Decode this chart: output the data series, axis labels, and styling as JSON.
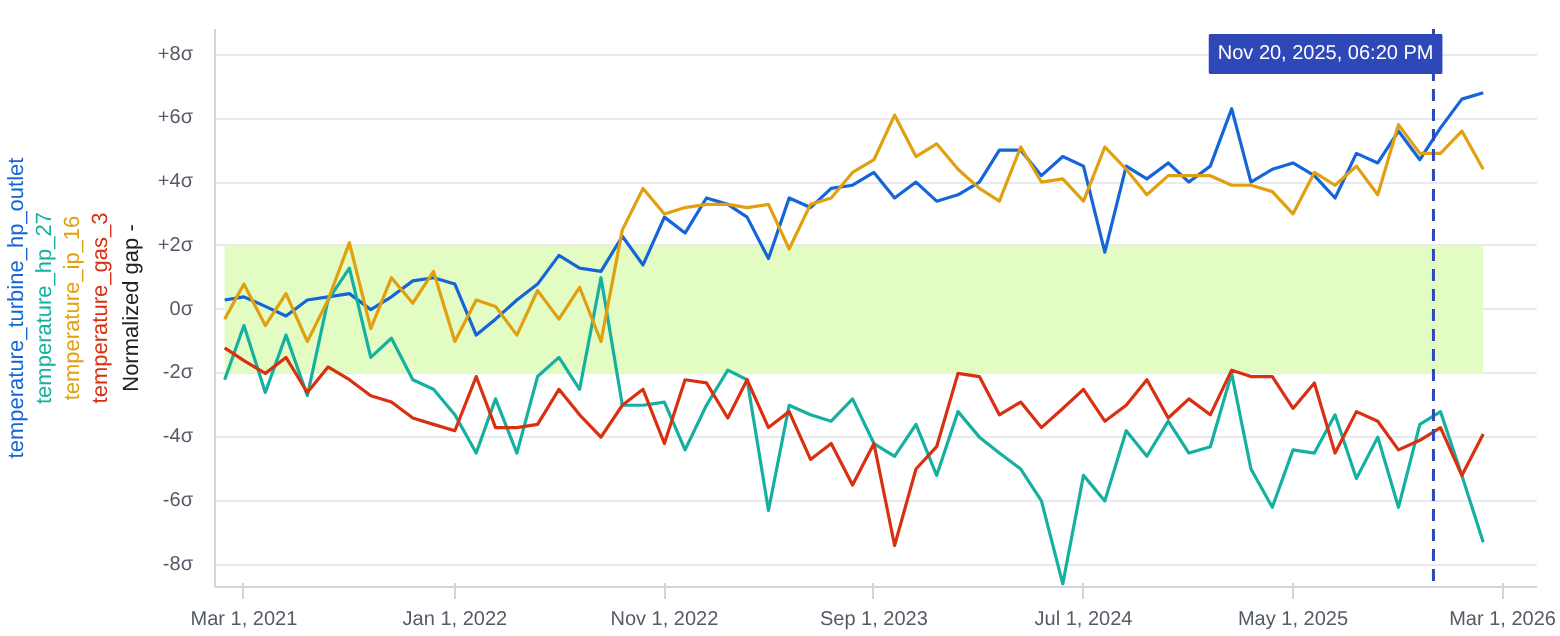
{
  "chart_data": {
    "type": "line",
    "ylabel": "Normalized gap -",
    "x": [
      "2021-02",
      "2021-03",
      "2021-04",
      "2021-05",
      "2021-06",
      "2021-07",
      "2021-08",
      "2021-09",
      "2021-10",
      "2021-11",
      "2021-12",
      "2022-01",
      "2022-02",
      "2022-03",
      "2022-04",
      "2022-05",
      "2022-06",
      "2022-07",
      "2022-08",
      "2022-09",
      "2022-10",
      "2022-11",
      "2022-12",
      "2023-01",
      "2023-02",
      "2023-03",
      "2023-04",
      "2023-05",
      "2023-06",
      "2023-07",
      "2023-08",
      "2023-09",
      "2023-10",
      "2023-11",
      "2023-12",
      "2024-01",
      "2024-02",
      "2024-03",
      "2024-04",
      "2024-05",
      "2024-06",
      "2024-07",
      "2024-08",
      "2024-09",
      "2024-10",
      "2024-11",
      "2024-12",
      "2025-01",
      "2025-02",
      "2025-03",
      "2025-04",
      "2025-05",
      "2025-06",
      "2025-07",
      "2025-08",
      "2025-09",
      "2025-10",
      "2025-11",
      "2025-12",
      "2026-01",
      "2026-02"
    ],
    "series": [
      {
        "name": "temperature_turbine_hp_outlet",
        "color": "#1565d8",
        "values": [
          0.3,
          0.4,
          0.1,
          -0.2,
          0.3,
          0.4,
          0.5,
          0,
          0.4,
          0.9,
          1,
          0.8,
          -0.8,
          -0.3,
          0.3,
          0.8,
          1.7,
          1.3,
          1.2,
          2.3,
          1.4,
          2.9,
          2.4,
          3.5,
          3.3,
          2.9,
          1.6,
          3.5,
          3.2,
          3.8,
          3.9,
          4.3,
          3.5,
          4,
          3.4,
          3.6,
          4,
          5,
          5,
          4.2,
          4.8,
          4.5,
          1.8,
          4.5,
          4.1,
          4.6,
          4,
          4.5,
          6.3,
          4,
          4.4,
          4.6,
          4.2,
          3.5,
          4.9,
          4.6,
          5.6,
          4.7,
          5.7,
          6.6,
          6.8
        ]
      },
      {
        "name": "temperature_hp_27",
        "color": "#16b0a0",
        "values": [
          -2.2,
          -0.5,
          -2.6,
          -0.8,
          -2.7,
          0.3,
          1.3,
          -1.5,
          -0.9,
          -2.2,
          -2.5,
          -3.3,
          -4.5,
          -2.8,
          -4.5,
          -2.1,
          -1.5,
          -2.5,
          1,
          -3,
          -3,
          -2.9,
          -4.4,
          -3,
          -1.9,
          -2.2,
          -6.3,
          -3,
          -3.3,
          -3.5,
          -2.8,
          -4.2,
          -4.6,
          -3.6,
          -5.2,
          -3.2,
          -4,
          -4.5,
          -5,
          -6,
          -8.6,
          -5.2,
          -6,
          -3.8,
          -4.6,
          -3.5,
          -4.5,
          -4.3,
          -2,
          -5,
          -6.2,
          -4.4,
          -4.5,
          -3.3,
          -5.3,
          -4,
          -6.2,
          -3.6,
          -3.2,
          -5.2,
          -7.3
        ]
      },
      {
        "name": "temperature_ip_16",
        "color": "#e0a010",
        "values": [
          -0.3,
          0.8,
          -0.5,
          0.5,
          -1,
          0.3,
          2.1,
          -0.6,
          1,
          0.2,
          1.2,
          -1,
          0.3,
          0.1,
          -0.8,
          0.6,
          -0.3,
          0.7,
          -1,
          2.5,
          3.8,
          3,
          3.2,
          3.3,
          3.3,
          3.2,
          3.3,
          1.9,
          3.3,
          3.5,
          4.3,
          4.7,
          6.1,
          4.8,
          5.2,
          4.4,
          3.8,
          3.4,
          5.1,
          4,
          4.1,
          3.4,
          5.1,
          4.4,
          3.6,
          4.2,
          4.2,
          4.2,
          3.9,
          3.9,
          3.7,
          3,
          4.3,
          3.9,
          4.5,
          3.6,
          5.8,
          4.9,
          4.9,
          5.6,
          4.4
        ]
      },
      {
        "name": "temperature_gas_3",
        "color": "#d83010",
        "values": [
          -1.2,
          -1.6,
          -2,
          -1.5,
          -2.6,
          -1.8,
          -2.2,
          -2.7,
          -2.9,
          -3.4,
          -3.6,
          -3.8,
          -2.1,
          -3.7,
          -3.7,
          -3.6,
          -2.5,
          -3.3,
          -4,
          -3,
          -2.5,
          -4.2,
          -2.2,
          -2.3,
          -3.4,
          -2.2,
          -3.7,
          -3.2,
          -4.7,
          -4.2,
          -5.5,
          -4.2,
          -7.4,
          -5,
          -4.3,
          -2,
          -2.1,
          -3.3,
          -2.9,
          -3.7,
          -3.1,
          -2.5,
          -3.5,
          -3,
          -2.2,
          -3.4,
          -2.8,
          -3.3,
          -1.9,
          -2.1,
          -2.1,
          -3.1,
          -2.3,
          -4.5,
          -3.2,
          -3.5,
          -4.4,
          -4.1,
          -3.7,
          -5.2,
          -3.9
        ]
      }
    ],
    "xlim": [
      "2021-01-18",
      "2026-04-20"
    ],
    "xticks": [
      {
        "value": "2021-03-01",
        "label": "Mar 1, 2021"
      },
      {
        "value": "2022-01-01",
        "label": "Jan 1, 2022"
      },
      {
        "value": "2022-11-01",
        "label": "Nov 1, 2022"
      },
      {
        "value": "2023-09-01",
        "label": "Sep 1, 2023"
      },
      {
        "value": "2024-07-01",
        "label": "Jul 1, 2024"
      },
      {
        "value": "2025-05-01",
        "label": "May 1, 2025"
      },
      {
        "value": "2026-03-01",
        "label": "Mar 1, 2026"
      }
    ],
    "ylim": [
      -8.7,
      8.8
    ],
    "yticks": [
      {
        "value": 8,
        "label": "+8σ"
      },
      {
        "value": 6,
        "label": "+6σ"
      },
      {
        "value": 4,
        "label": "+4σ"
      },
      {
        "value": 2,
        "label": "+2σ"
      },
      {
        "value": 0,
        "label": "0σ"
      },
      {
        "value": -2,
        "label": "-2σ"
      },
      {
        "value": -4,
        "label": "-4σ"
      },
      {
        "value": -6,
        "label": "-6σ"
      },
      {
        "value": -8,
        "label": "-8σ"
      }
    ],
    "bands": [
      {
        "axis": "y",
        "from": -2,
        "to": 2,
        "label": null,
        "color": "#e3fcc4"
      }
    ],
    "ref_lines": [
      {
        "axis": "x",
        "value": "2025-11-20T18:20",
        "label": "Nov 20, 2025, 06:20 PM",
        "color": "#2e48b8",
        "line_style": "dashed"
      }
    ],
    "grid": "y",
    "marker": "none",
    "line_style": "solid"
  }
}
